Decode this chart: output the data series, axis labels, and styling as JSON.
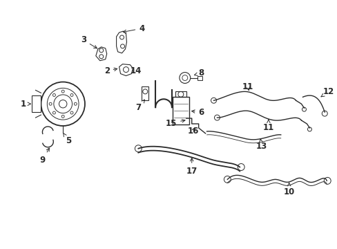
{
  "bg_color": "#ffffff",
  "line_color": "#2a2a2a",
  "figsize": [
    4.89,
    3.6
  ],
  "dpi": 100,
  "lw": 1.0
}
